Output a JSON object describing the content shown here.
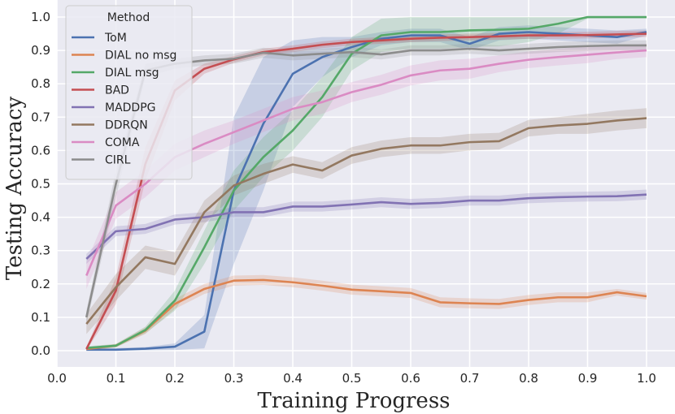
{
  "chart_data": {
    "type": "line",
    "title": "",
    "xlabel": "Training Progress",
    "ylabel": "Testing Accuracy",
    "xlim": [
      0.0,
      1.0
    ],
    "ylim": [
      -0.03,
      1.03
    ],
    "xticks": [
      "0.0",
      "0.1",
      "0.2",
      "0.3",
      "0.4",
      "0.5",
      "0.6",
      "0.7",
      "0.8",
      "0.9",
      "1.0"
    ],
    "yticks": [
      "0.0",
      "0.1",
      "0.2",
      "0.3",
      "0.4",
      "0.5",
      "0.6",
      "0.7",
      "0.8",
      "0.9",
      "1.0"
    ],
    "grid": true,
    "legend": {
      "title": "Method",
      "position": "top-left"
    },
    "series": [
      {
        "name": "ToM",
        "color": "#4c72b0",
        "x": [
          0.05,
          0.1,
          0.15,
          0.2,
          0.25,
          0.3,
          0.35,
          0.4,
          0.45,
          0.5,
          0.55,
          0.6,
          0.65,
          0.7,
          0.75,
          0.8,
          0.85,
          0.9,
          0.95,
          1.0
        ],
        "y": [
          0.003,
          0.003,
          0.006,
          0.012,
          0.057,
          0.48,
          0.68,
          0.83,
          0.88,
          0.91,
          0.935,
          0.945,
          0.945,
          0.92,
          0.95,
          0.955,
          0.95,
          0.945,
          0.94,
          0.955
        ],
        "band": [
          0.005,
          0.005,
          0.005,
          0.01,
          0.05,
          0.22,
          0.2,
          0.1,
          0.06,
          0.03,
          0.02,
          0.02,
          0.02,
          0.02,
          0.02,
          0.02,
          0.02,
          0.02,
          0.02,
          0.01
        ]
      },
      {
        "name": "DIAL no msg",
        "color": "#dd8452",
        "x": [
          0.05,
          0.1,
          0.15,
          0.2,
          0.25,
          0.3,
          0.35,
          0.4,
          0.45,
          0.5,
          0.55,
          0.6,
          0.65,
          0.7,
          0.75,
          0.8,
          0.85,
          0.9,
          0.95,
          1.0
        ],
        "y": [
          0.005,
          0.015,
          0.06,
          0.14,
          0.185,
          0.21,
          0.212,
          0.205,
          0.195,
          0.183,
          0.178,
          0.173,
          0.145,
          0.142,
          0.14,
          0.152,
          0.16,
          0.16,
          0.175,
          0.163
        ],
        "band": [
          0.005,
          0.005,
          0.01,
          0.015,
          0.015,
          0.015,
          0.015,
          0.015,
          0.015,
          0.015,
          0.015,
          0.015,
          0.015,
          0.015,
          0.015,
          0.015,
          0.015,
          0.015,
          0.01,
          0.01
        ]
      },
      {
        "name": "DIAL msg",
        "color": "#55a868",
        "x": [
          0.05,
          0.1,
          0.15,
          0.2,
          0.25,
          0.3,
          0.35,
          0.4,
          0.45,
          0.5,
          0.55,
          0.6,
          0.65,
          0.7,
          0.75,
          0.8,
          0.85,
          0.9,
          0.95,
          1.0
        ],
        "y": [
          0.008,
          0.015,
          0.062,
          0.15,
          0.31,
          0.48,
          0.58,
          0.66,
          0.76,
          0.89,
          0.945,
          0.955,
          0.955,
          0.96,
          0.962,
          0.965,
          0.98,
          1.0,
          1.0,
          1.0
        ],
        "band": [
          0.005,
          0.005,
          0.01,
          0.03,
          0.05,
          0.06,
          0.06,
          0.06,
          0.06,
          0.05,
          0.05,
          0.05,
          0.05,
          0.05,
          0.05,
          0.04,
          0.03,
          0.005,
          0.005,
          0.005
        ]
      },
      {
        "name": "BAD",
        "color": "#c44e52",
        "x": [
          0.05,
          0.1,
          0.15,
          0.2,
          0.25,
          0.3,
          0.35,
          0.4,
          0.45,
          0.5,
          0.55,
          0.6,
          0.65,
          0.7,
          0.75,
          0.8,
          0.85,
          0.9,
          0.95,
          1.0
        ],
        "y": [
          0.005,
          0.18,
          0.56,
          0.78,
          0.845,
          0.873,
          0.895,
          0.905,
          0.917,
          0.925,
          0.93,
          0.935,
          0.938,
          0.94,
          0.942,
          0.945,
          0.945,
          0.946,
          0.948,
          0.95
        ],
        "band": [
          0.005,
          0.04,
          0.05,
          0.03,
          0.015,
          0.01,
          0.01,
          0.01,
          0.01,
          0.01,
          0.01,
          0.01,
          0.01,
          0.01,
          0.01,
          0.01,
          0.01,
          0.01,
          0.01,
          0.01
        ]
      },
      {
        "name": "MADDPG",
        "color": "#8172b3",
        "x": [
          0.05,
          0.1,
          0.15,
          0.2,
          0.25,
          0.3,
          0.35,
          0.4,
          0.45,
          0.5,
          0.55,
          0.6,
          0.65,
          0.7,
          0.75,
          0.8,
          0.85,
          0.9,
          0.95,
          1.0
        ],
        "y": [
          0.275,
          0.358,
          0.365,
          0.393,
          0.4,
          0.415,
          0.415,
          0.432,
          0.432,
          0.438,
          0.445,
          0.44,
          0.443,
          0.45,
          0.45,
          0.457,
          0.46,
          0.462,
          0.463,
          0.468
        ],
        "band": [
          0.015,
          0.015,
          0.015,
          0.015,
          0.015,
          0.015,
          0.015,
          0.015,
          0.015,
          0.015,
          0.015,
          0.015,
          0.015,
          0.015,
          0.015,
          0.015,
          0.015,
          0.015,
          0.015,
          0.015
        ]
      },
      {
        "name": "DDRQN",
        "color": "#937860",
        "x": [
          0.05,
          0.1,
          0.15,
          0.2,
          0.25,
          0.3,
          0.35,
          0.4,
          0.45,
          0.5,
          0.55,
          0.6,
          0.65,
          0.7,
          0.75,
          0.8,
          0.85,
          0.9,
          0.95,
          1.0
        ],
        "y": [
          0.08,
          0.19,
          0.28,
          0.26,
          0.415,
          0.495,
          0.53,
          0.558,
          0.54,
          0.585,
          0.605,
          0.615,
          0.615,
          0.625,
          0.628,
          0.667,
          0.675,
          0.68,
          0.69,
          0.697
        ],
        "band": [
          0.03,
          0.04,
          0.035,
          0.035,
          0.035,
          0.03,
          0.03,
          0.025,
          0.025,
          0.025,
          0.025,
          0.025,
          0.025,
          0.025,
          0.025,
          0.025,
          0.025,
          0.03,
          0.03,
          0.03
        ]
      },
      {
        "name": "COMA",
        "color": "#da8bc3",
        "x": [
          0.05,
          0.1,
          0.15,
          0.2,
          0.25,
          0.3,
          0.35,
          0.4,
          0.45,
          0.5,
          0.55,
          0.6,
          0.65,
          0.7,
          0.75,
          0.8,
          0.85,
          0.9,
          0.95,
          1.0
        ],
        "y": [
          0.225,
          0.435,
          0.5,
          0.58,
          0.62,
          0.655,
          0.69,
          0.725,
          0.745,
          0.775,
          0.797,
          0.825,
          0.84,
          0.845,
          0.86,
          0.872,
          0.88,
          0.887,
          0.894,
          0.9
        ],
        "band": [
          0.04,
          0.04,
          0.04,
          0.04,
          0.04,
          0.035,
          0.035,
          0.035,
          0.035,
          0.03,
          0.03,
          0.03,
          0.03,
          0.03,
          0.025,
          0.025,
          0.025,
          0.025,
          0.02,
          0.02
        ]
      },
      {
        "name": "CIRL",
        "color": "#8c8c8c",
        "x": [
          0.05,
          0.1,
          0.15,
          0.2,
          0.25,
          0.3,
          0.35,
          0.4,
          0.45,
          0.5,
          0.55,
          0.6,
          0.65,
          0.7,
          0.75,
          0.8,
          0.85,
          0.9,
          0.95,
          1.0
        ],
        "y": [
          0.1,
          0.5,
          0.84,
          0.86,
          0.87,
          0.875,
          0.893,
          0.885,
          0.89,
          0.895,
          0.888,
          0.9,
          0.9,
          0.905,
          0.9,
          0.905,
          0.91,
          0.913,
          0.915,
          0.915
        ],
        "band": [
          0.02,
          0.04,
          0.02,
          0.015,
          0.015,
          0.015,
          0.015,
          0.015,
          0.015,
          0.015,
          0.015,
          0.015,
          0.015,
          0.015,
          0.015,
          0.015,
          0.015,
          0.015,
          0.015,
          0.015
        ]
      }
    ]
  }
}
